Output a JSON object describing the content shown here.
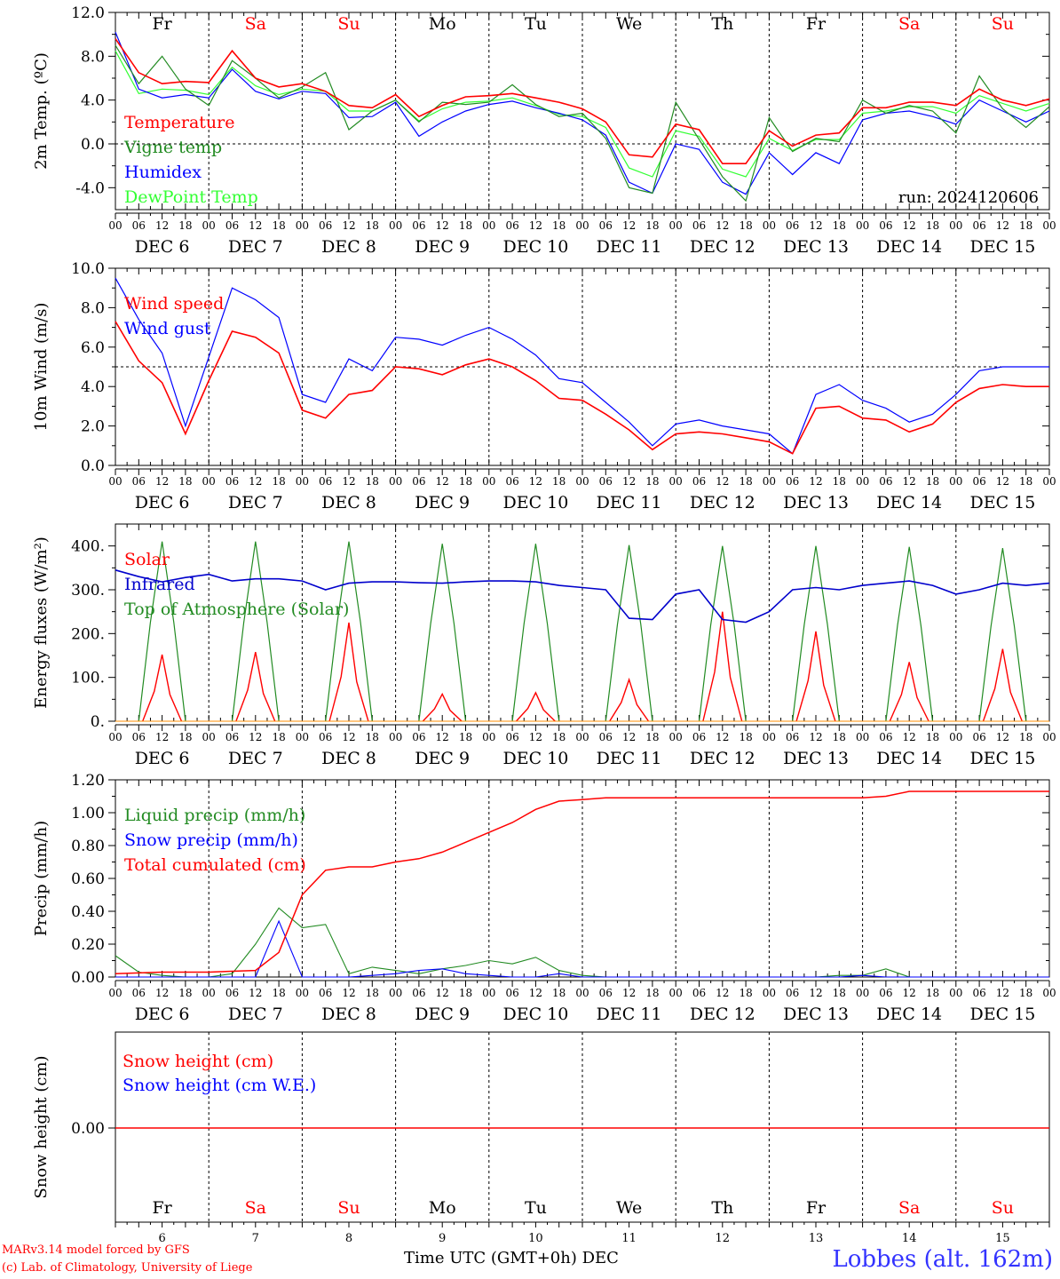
{
  "chart_data": [
    {
      "type": "line",
      "ylabel": "2m Temp. (ºC)",
      "ylim": [
        -6,
        12
      ],
      "yticks": [
        "12.0",
        "8.0",
        "4.0",
        "0.0",
        "-4.0"
      ],
      "run_label": "run: 2024120606",
      "x_hours": [
        0,
        6,
        12,
        18,
        24,
        30,
        36,
        42,
        48,
        54,
        60,
        66,
        72,
        78,
        84,
        90,
        96,
        102,
        108,
        114,
        120,
        126,
        132,
        138,
        144,
        150,
        156,
        162,
        168,
        174,
        180,
        186,
        192,
        198,
        204,
        210,
        216,
        222,
        228,
        234,
        240
      ],
      "series": [
        {
          "name": "Temperature",
          "color": "#ff0000",
          "values": [
            9.6,
            6.5,
            5.5,
            5.7,
            5.6,
            8.5,
            6.0,
            5.2,
            5.5,
            4.8,
            3.5,
            3.3,
            4.5,
            2.5,
            3.5,
            4.3,
            4.4,
            4.6,
            4.2,
            3.8,
            3.2,
            2.0,
            -1.0,
            -1.2,
            1.8,
            1.3,
            -1.8,
            -1.8,
            1.2,
            -0.2,
            0.8,
            1.0,
            3.3,
            3.3,
            3.8,
            3.8,
            3.5,
            5.0,
            4.0,
            3.5,
            4.1
          ]
        },
        {
          "name": "Vigne temp",
          "color": "#228b22",
          "values": [
            9.0,
            5.5,
            8.0,
            5.0,
            3.5,
            7.6,
            6.0,
            4.2,
            5.2,
            6.5,
            1.3,
            3.0,
            4.0,
            2.0,
            3.8,
            3.6,
            3.8,
            5.4,
            3.6,
            2.5,
            2.8,
            0.5,
            -4.0,
            -4.5,
            3.8,
            0.4,
            -3.0,
            -5.2,
            2.4,
            -0.7,
            0.5,
            0.2,
            4.0,
            2.8,
            3.5,
            3.0,
            1.0,
            6.2,
            3.2,
            1.5,
            3.4
          ]
        },
        {
          "name": "Humidex",
          "color": "#0000ff",
          "values": [
            10.2,
            5.0,
            4.2,
            4.5,
            4.2,
            6.8,
            4.8,
            4.1,
            4.8,
            4.6,
            2.4,
            2.5,
            3.8,
            0.7,
            2.0,
            3.0,
            3.6,
            3.9,
            3.3,
            2.8,
            2.2,
            0.8,
            -3.5,
            -4.5,
            0.0,
            -0.5,
            -3.5,
            -4.6,
            -0.8,
            -2.8,
            -0.8,
            -1.8,
            2.2,
            2.8,
            3.0,
            2.5,
            1.8,
            4.0,
            3.0,
            2.0,
            3.0
          ]
        },
        {
          "name": "DewPoint Temp",
          "color": "#33ff33",
          "values": [
            8.5,
            4.6,
            5.0,
            4.9,
            4.5,
            7.0,
            5.3,
            4.5,
            5.0,
            4.8,
            3.0,
            3.0,
            4.0,
            2.1,
            3.2,
            3.8,
            3.9,
            4.2,
            3.5,
            2.7,
            2.5,
            1.5,
            -2.2,
            -3.0,
            1.2,
            0.7,
            -2.3,
            -3.0,
            0.5,
            -0.6,
            0.4,
            0.4,
            2.8,
            3.0,
            3.4,
            3.4,
            2.8,
            4.4,
            3.7,
            3.0,
            3.7
          ]
        }
      ],
      "zero_line": 0
    },
    {
      "type": "line",
      "ylabel": "10m Wind (m/s)",
      "ylim": [
        0,
        10
      ],
      "yticks": [
        "10.0",
        "8.0",
        "6.0",
        "4.0",
        "2.0",
        "0.0"
      ],
      "x_hours": [
        0,
        6,
        12,
        18,
        24,
        30,
        36,
        42,
        48,
        54,
        60,
        66,
        72,
        78,
        84,
        90,
        96,
        102,
        108,
        114,
        120,
        126,
        132,
        138,
        144,
        150,
        156,
        162,
        168,
        174,
        180,
        186,
        192,
        198,
        204,
        210,
        216,
        222,
        228,
        234,
        240
      ],
      "series": [
        {
          "name": "Wind speed",
          "color": "#ff0000",
          "values": [
            7.3,
            5.3,
            4.2,
            1.6,
            4.3,
            6.8,
            6.5,
            5.7,
            2.8,
            2.4,
            3.6,
            3.8,
            5.0,
            4.9,
            4.6,
            5.1,
            5.4,
            5.0,
            4.3,
            3.4,
            3.3,
            2.6,
            1.8,
            0.8,
            1.6,
            1.7,
            1.6,
            1.4,
            1.2,
            0.6,
            2.9,
            3.0,
            2.4,
            2.3,
            1.7,
            2.1,
            3.2,
            3.9,
            4.1,
            4.0,
            4.0
          ]
        },
        {
          "name": "Wind gust",
          "color": "#0000ff",
          "values": [
            9.5,
            7.4,
            5.7,
            2.0,
            5.5,
            9.0,
            8.4,
            7.5,
            3.6,
            3.2,
            5.4,
            4.8,
            6.5,
            6.4,
            6.1,
            6.6,
            7.0,
            6.4,
            5.6,
            4.4,
            4.2,
            3.2,
            2.2,
            1.0,
            2.1,
            2.3,
            2.0,
            1.8,
            1.6,
            0.6,
            3.6,
            4.1,
            3.3,
            2.9,
            2.2,
            2.6,
            3.6,
            4.8,
            5.0,
            5.0,
            5.0
          ]
        }
      ],
      "ref_line": 5
    },
    {
      "type": "line",
      "ylabel": "Energy fluxes (W/m²)",
      "ylim": [
        0,
        450
      ],
      "yticks": [
        "400.",
        "300.",
        "200.",
        "100.",
        "0."
      ],
      "days": [
        "DEC 6",
        "DEC 7",
        "DEC 8",
        "DEC 9",
        "DEC 10",
        "DEC 11",
        "DEC 12",
        "DEC 13",
        "DEC 14",
        "DEC 15"
      ],
      "series": [
        {
          "name": "Solar",
          "color": "#ff0000",
          "daily_peak": [
            152,
            158,
            225,
            62,
            65,
            95,
            250,
            205,
            135,
            165
          ]
        },
        {
          "name": "Infrared",
          "color": "#0000cc",
          "x_hours": [
            0,
            6,
            12,
            18,
            24,
            30,
            36,
            42,
            48,
            54,
            60,
            66,
            72,
            78,
            84,
            90,
            96,
            102,
            108,
            114,
            120,
            126,
            132,
            138,
            144,
            150,
            156,
            162,
            168,
            174,
            180,
            186,
            192,
            198,
            204,
            210,
            216,
            222,
            228,
            234,
            240
          ],
          "values": [
            345,
            330,
            318,
            328,
            335,
            320,
            325,
            325,
            320,
            300,
            315,
            318,
            318,
            316,
            315,
            318,
            320,
            320,
            318,
            310,
            305,
            300,
            235,
            232,
            290,
            300,
            232,
            226,
            250,
            300,
            305,
            300,
            310,
            315,
            320,
            310,
            290,
            300,
            315,
            310,
            315
          ]
        },
        {
          "name": "Top of Atmosphere (Solar)",
          "color": "#228b22",
          "daily_peak": [
            410,
            410,
            410,
            405,
            405,
            402,
            400,
            400,
            398,
            395
          ]
        }
      ]
    },
    {
      "type": "line",
      "ylabel": "Precip (mm/h)",
      "ylim": [
        0,
        1.2
      ],
      "yticks": [
        "1.20",
        "1.00",
        "0.80",
        "0.60",
        "0.40",
        "0.20",
        "0.00"
      ],
      "x_hours": [
        0,
        6,
        12,
        18,
        24,
        30,
        36,
        42,
        48,
        54,
        60,
        66,
        72,
        78,
        84,
        90,
        96,
        102,
        108,
        114,
        120,
        126,
        132,
        138,
        144,
        150,
        156,
        162,
        168,
        174,
        180,
        186,
        192,
        198,
        204,
        210,
        216,
        222,
        228,
        234,
        240
      ],
      "series": [
        {
          "name": "Liquid precip (mm/h)",
          "color": "#228b22",
          "values": [
            0.13,
            0.03,
            0.01,
            0.0,
            0.0,
            0.02,
            0.2,
            0.42,
            0.3,
            0.32,
            0.02,
            0.06,
            0.04,
            0.02,
            0.05,
            0.07,
            0.1,
            0.08,
            0.12,
            0.04,
            0.01,
            0.0,
            0.0,
            0.0,
            0.0,
            0.0,
            0.0,
            0.0,
            0.0,
            0.0,
            0.0,
            0.01,
            0.01,
            0.05,
            0.0,
            0.0,
            0.0,
            0.0,
            0.0,
            0.0,
            0.0
          ]
        },
        {
          "name": "Snow precip (mm/h)",
          "color": "#0000ff",
          "values": [
            0.0,
            0.0,
            0.0,
            0.0,
            0.0,
            0.0,
            0.0,
            0.34,
            0.0,
            0.0,
            0.0,
            0.01,
            0.02,
            0.04,
            0.05,
            0.02,
            0.01,
            0.0,
            0.0,
            0.02,
            0.0,
            0.0,
            0.0,
            0.0,
            0.0,
            0.0,
            0.0,
            0.0,
            0.0,
            0.0,
            0.0,
            0.0,
            0.01,
            0.0,
            0.0,
            0.0,
            0.0,
            0.0,
            0.0,
            0.0,
            0.0
          ]
        },
        {
          "name": "Total cumulated (cm)",
          "color": "#ff0000",
          "values": [
            0.02,
            0.025,
            0.03,
            0.03,
            0.03,
            0.035,
            0.04,
            0.15,
            0.5,
            0.65,
            0.67,
            0.67,
            0.7,
            0.72,
            0.76,
            0.82,
            0.88,
            0.94,
            1.02,
            1.07,
            1.08,
            1.09,
            1.09,
            1.09,
            1.09,
            1.09,
            1.09,
            1.09,
            1.09,
            1.09,
            1.09,
            1.09,
            1.09,
            1.1,
            1.13,
            1.13,
            1.13,
            1.13,
            1.13,
            1.13,
            1.13
          ]
        }
      ]
    },
    {
      "type": "line",
      "ylabel": "Snow height (cm)",
      "yticks": [
        "0.00"
      ],
      "series": [
        {
          "name": "Snow height (cm)",
          "color": "#ff0000",
          "values": [
            0,
            0
          ]
        },
        {
          "name": "Snow height (cm W.E.)",
          "color": "#0000ff",
          "values": []
        }
      ]
    }
  ],
  "axis": {
    "hour_labels": [
      "00",
      "06",
      "12",
      "18"
    ],
    "final_hour": "00",
    "day_labels": [
      "DEC  6",
      "DEC  7",
      "DEC  8",
      "DEC  9",
      "DEC 10",
      "DEC 11",
      "DEC 12",
      "DEC 13",
      "DEC 14",
      "DEC 15"
    ],
    "weekdays": [
      "Fr",
      "Sa",
      "Su",
      "Mo",
      "Tu",
      "We",
      "Th",
      "Fr",
      "Sa",
      "Su"
    ],
    "weekday_colors": [
      "#000000",
      "#ff0000",
      "#ff0000",
      "#000000",
      "#000000",
      "#000000",
      "#000000",
      "#000000",
      "#ff0000",
      "#ff0000"
    ],
    "day_numbers": [
      "6",
      "7",
      "8",
      "9",
      "10",
      "11",
      "12",
      "13",
      "14",
      "15"
    ],
    "xlabel": "Time UTC (GMT+0h)",
    "xlabel_suffix": "DEC"
  },
  "footer": {
    "model": "MARv3.14 model forced by GFS",
    "lab": "(c) Lab. of Climatology, University of Liege",
    "station": "Lobbes (alt. 162m)"
  }
}
